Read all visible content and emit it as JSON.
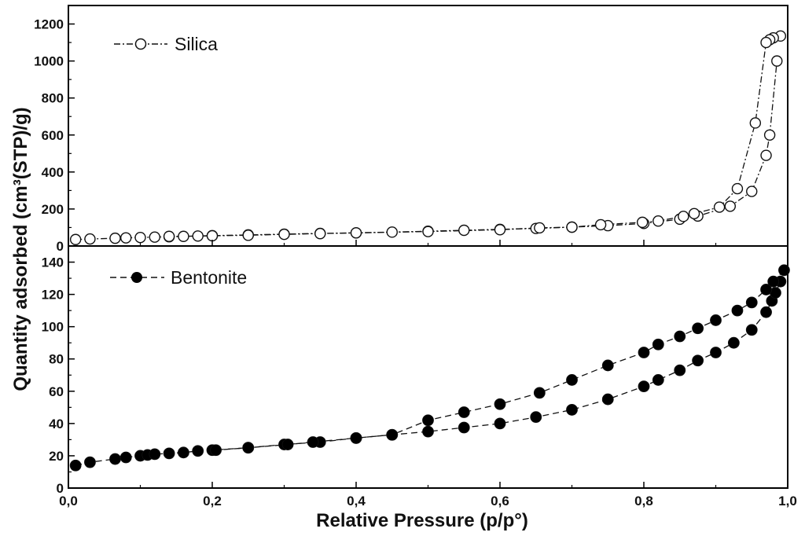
{
  "figure": {
    "ylabel": "Quantity adsorbed (cm³(STP)/g)",
    "xlabel": "Relative Pressure (p/p°)"
  },
  "chart_data": [
    {
      "type": "line",
      "panel": "top",
      "xlim": [
        0,
        1.0
      ],
      "ylim": [
        0,
        1300
      ],
      "xticks": [
        0,
        0.2,
        0.4,
        0.6,
        0.8,
        1.0
      ],
      "yticks": [
        0,
        200,
        400,
        600,
        800,
        1000,
        1200
      ],
      "yticklabels": [
        "0",
        "200",
        "400",
        "600",
        "800",
        "1000",
        "1200"
      ],
      "legend_position": "top-left",
      "series": [
        {
          "name": "Silica",
          "marker": "open-circle",
          "line_style": "dash-dot",
          "adsorption": {
            "x": [
              0.01,
              0.03,
              0.065,
              0.08,
              0.1,
              0.12,
              0.14,
              0.16,
              0.18,
              0.2,
              0.25,
              0.3,
              0.35,
              0.4,
              0.45,
              0.5,
              0.55,
              0.6,
              0.65,
              0.7,
              0.75,
              0.8,
              0.85,
              0.875,
              0.92,
              0.95,
              0.97,
              0.975,
              0.985
            ],
            "y": [
              35,
              38,
              42,
              44,
              46,
              48,
              50,
              52,
              54,
              56,
              60,
              64,
              68,
              71,
              75,
              80,
              85,
              90,
              95,
              102,
              110,
              122,
              145,
              162,
              215,
              295,
              490,
              600,
              1000
            ]
          },
          "desorption": {
            "x": [
              0.99,
              0.98,
              0.975,
              0.97,
              0.955,
              0.93,
              0.905,
              0.87,
              0.855,
              0.82,
              0.798,
              0.74,
              0.7,
              0.655,
              0.6,
              0.5,
              0.4,
              0.35,
              0.3,
              0.25,
              0.2,
              0.14
            ],
            "y": [
              1135,
              1125,
              1115,
              1100,
              665,
              310,
              210,
              175,
              160,
              135,
              128,
              115,
              102,
              98,
              88,
              78,
              71,
              67,
              63,
              58,
              55,
              52
            ]
          }
        }
      ]
    },
    {
      "type": "line",
      "panel": "bottom",
      "xlim": [
        0,
        1.0
      ],
      "ylim": [
        0,
        150
      ],
      "xticks": [
        0,
        0.2,
        0.4,
        0.6,
        0.8,
        1.0
      ],
      "xticklabels": [
        "0,0",
        "0,2",
        "0,4",
        "0,6",
        "0,8",
        "1,0"
      ],
      "yticks": [
        0,
        20,
        40,
        60,
        80,
        100,
        120,
        140
      ],
      "yticklabels": [
        "0",
        "20",
        "40",
        "60",
        "80",
        "100",
        "120",
        "140"
      ],
      "legend_position": "top-left",
      "series": [
        {
          "name": "Bentonite",
          "marker": "filled-circle",
          "line_style": "dashed",
          "adsorption": {
            "x": [
              0.01,
              0.03,
              0.065,
              0.08,
              0.1,
              0.11,
              0.12,
              0.14,
              0.16,
              0.18,
              0.2,
              0.25,
              0.3,
              0.35,
              0.4,
              0.45,
              0.5,
              0.55,
              0.6,
              0.65,
              0.7,
              0.75,
              0.8,
              0.82,
              0.85,
              0.875,
              0.9,
              0.925,
              0.95,
              0.97,
              0.978,
              0.983,
              0.99
            ],
            "y": [
              14,
              16,
              18,
              19,
              20,
              20.5,
              21,
              21.5,
              22,
              23,
              23.5,
              25,
              27,
              28.5,
              31,
              33,
              35,
              37.5,
              40,
              44,
              48.5,
              55,
              63,
              67,
              73,
              79,
              84,
              90,
              98,
              109,
              116,
              121,
              128
            ]
          },
          "desorption": {
            "x": [
              0.995,
              0.98,
              0.97,
              0.95,
              0.93,
              0.9,
              0.875,
              0.85,
              0.82,
              0.8,
              0.75,
              0.7,
              0.655,
              0.6,
              0.55,
              0.5,
              0.45,
              0.4,
              0.34,
              0.305,
              0.25,
              0.205
            ],
            "y": [
              135,
              128,
              123,
              115,
              110,
              104,
              99,
              94,
              89,
              84,
              76,
              67,
              59,
              52,
              47,
              42,
              33,
              31,
              28.5,
              27,
              25,
              23.5
            ]
          }
        }
      ]
    }
  ]
}
